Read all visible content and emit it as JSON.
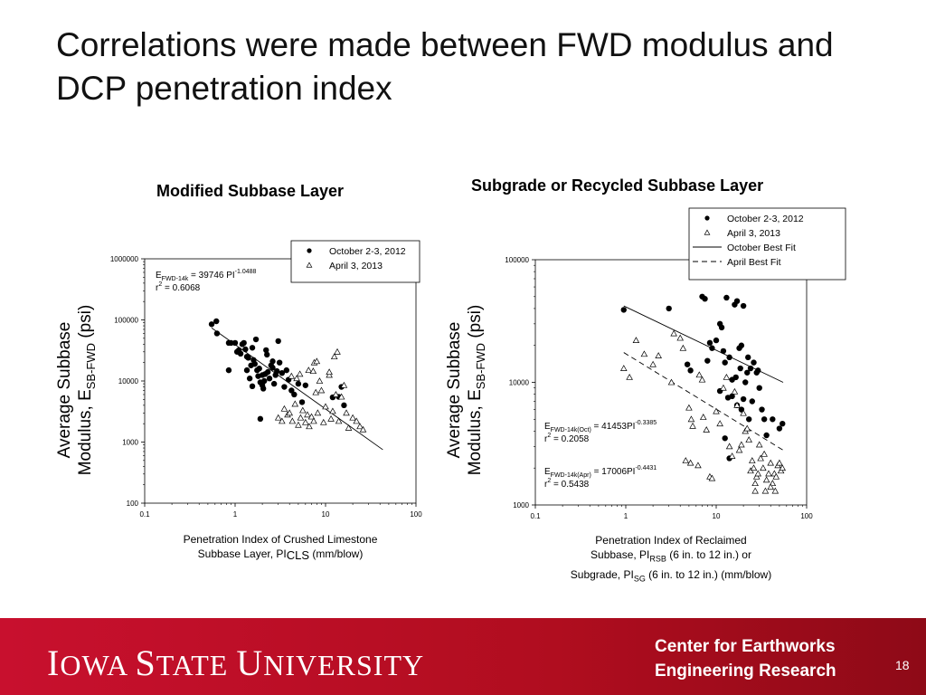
{
  "slide": {
    "title": "Correlations were made between FWD modulus and DCP penetration index",
    "page_number": "18",
    "footer": {
      "university_initial_1": "I",
      "university_rest_1": "OWA ",
      "university_initial_2": "S",
      "university_rest_2": "TATE ",
      "university_initial_3": "U",
      "university_rest_3": "NIVERSITY",
      "center_line1": "Center for Earthworks",
      "center_line2": "Engineering Research"
    }
  },
  "chart_data": [
    {
      "type": "scatter",
      "title": "Modified Subbase Layer",
      "y_scale": "log",
      "x_scale": "log",
      "xlim": [
        0.1,
        100
      ],
      "ylim": [
        100,
        1000000
      ],
      "x_ticks": [
        "0.1",
        "1",
        "10",
        "100"
      ],
      "y_ticks": [
        "100",
        "1000",
        "10000",
        "100000",
        "1000000"
      ],
      "ylabel_line1": "Average Subbase",
      "ylabel_line2_prefix": "Modulus, E",
      "ylabel_line2_sub": "SB-FWD",
      "ylabel_line2_suffix": " (psi)",
      "xlabel_line1": "Penetration Index of Crushed Limestone",
      "xlabel_line2_prefix": "Subbase Layer, PI",
      "xlabel_line2_sub": "CLS",
      "xlabel_line2_suffix": " (mm/blow)",
      "equation": {
        "E": "E",
        "sub": "FWD-14k",
        "body": " = 39746 PI",
        "sup": "-1.0488",
        "r": "r",
        "r_sup": "2",
        "r_val": " = 0.6068"
      },
      "legend": {
        "placement": "top-right",
        "entries": [
          "October 2-3, 2012",
          "April 3, 2013"
        ]
      },
      "fit_line": {
        "x": [
          0.55,
          43
        ],
        "y": [
          74000,
          750
        ]
      },
      "series": [
        {
          "name": "October 2-3, 2012",
          "marker": "filled-circle",
          "points": [
            [
              0.55,
              85000
            ],
            [
              0.62,
              95000
            ],
            [
              0.63,
              60000
            ],
            [
              0.85,
              42000
            ],
            [
              0.9,
              42000
            ],
            [
              1.0,
              42000
            ],
            [
              1.05,
              30000
            ],
            [
              1.1,
              32000
            ],
            [
              1.15,
              28000
            ],
            [
              1.2,
              40000
            ],
            [
              1.25,
              42000
            ],
            [
              1.3,
              33000
            ],
            [
              1.35,
              25000
            ],
            [
              1.4,
              24000
            ],
            [
              1.5,
              18000
            ],
            [
              1.55,
              35000
            ],
            [
              1.6,
              22000
            ],
            [
              1.7,
              48000
            ],
            [
              1.75,
              15000
            ],
            [
              1.8,
              12000
            ],
            [
              1.85,
              16000
            ],
            [
              1.9,
              9500
            ],
            [
              2.0,
              8500
            ],
            [
              2.05,
              7500
            ],
            [
              2.1,
              10000
            ],
            [
              2.15,
              13000
            ],
            [
              2.2,
              32000
            ],
            [
              2.3,
              14000
            ],
            [
              2.4,
              11000
            ],
            [
              2.5,
              18000
            ],
            [
              2.6,
              21000
            ],
            [
              2.7,
              9000
            ],
            [
              2.8,
              12500
            ],
            [
              2.9,
              14500
            ],
            [
              3.0,
              45000
            ],
            [
              3.1,
              20000
            ],
            [
              3.3,
              13500
            ],
            [
              3.5,
              8000
            ],
            [
              3.7,
              15000
            ],
            [
              3.9,
              10500
            ],
            [
              4.2,
              7000
            ],
            [
              4.5,
              6000
            ],
            [
              5.0,
              9000
            ],
            [
              5.5,
              4500
            ],
            [
              1.65,
              19000
            ],
            [
              1.35,
              15000
            ],
            [
              2.25,
              27000
            ],
            [
              1.55,
              8200
            ],
            [
              1.9,
              2400
            ],
            [
              14,
              5500
            ],
            [
              15,
              8000
            ],
            [
              16,
              4000
            ],
            [
              6,
              8500
            ],
            [
              0.85,
              15000
            ],
            [
              1.45,
              11000
            ],
            [
              2.0,
              12500
            ],
            [
              2.6,
              16500
            ],
            [
              12,
              5400
            ]
          ]
        },
        {
          "name": "April 3, 2013",
          "marker": "open-triangle",
          "points": [
            [
              3.0,
              2500
            ],
            [
              3.3,
              2200
            ],
            [
              3.5,
              3500
            ],
            [
              3.8,
              2800
            ],
            [
              4.0,
              3000
            ],
            [
              4.3,
              2200
            ],
            [
              4.6,
              4200
            ],
            [
              5.0,
              1900
            ],
            [
              5.3,
              2500
            ],
            [
              5.6,
              3300
            ],
            [
              6.0,
              2100
            ],
            [
              6.3,
              2800
            ],
            [
              6.6,
              1800
            ],
            [
              7.0,
              2600
            ],
            [
              7.4,
              2200
            ],
            [
              7.8,
              6500
            ],
            [
              8.2,
              3000
            ],
            [
              8.6,
              10000
            ],
            [
              9.0,
              7000
            ],
            [
              9.5,
              2100
            ],
            [
              10,
              3800
            ],
            [
              11,
              12500
            ],
            [
              11.5,
              2400
            ],
            [
              12,
              3200
            ],
            [
              13,
              6000
            ],
            [
              14,
              2200
            ],
            [
              15,
              5500
            ],
            [
              16,
              8500
            ],
            [
              17,
              3000
            ],
            [
              18,
              1700
            ],
            [
              20,
              2500
            ],
            [
              22,
              2200
            ],
            [
              24,
              1800
            ],
            [
              26,
              1600
            ],
            [
              7.5,
              20000
            ],
            [
              8.0,
              21000
            ],
            [
              11,
              14000
            ],
            [
              12.5,
              25000
            ],
            [
              13.5,
              30000
            ],
            [
              6.5,
              15000
            ],
            [
              5.2,
              13000
            ],
            [
              4.8,
              11000
            ],
            [
              7.3,
              14500
            ],
            [
              4.2,
              12000
            ]
          ]
        }
      ]
    },
    {
      "type": "scatter",
      "title": "Subgrade or Recycled Subbase Layer",
      "y_scale": "log",
      "x_scale": "log",
      "xlim": [
        0.1,
        100
      ],
      "ylim": [
        1000,
        100000
      ],
      "x_ticks": [
        "0.1",
        "1",
        "10",
        "100"
      ],
      "y_ticks": [
        "1000",
        "10000",
        "100000"
      ],
      "ylabel_line1": "Average Subbase",
      "ylabel_line2_prefix": "Modulus, E",
      "ylabel_line2_sub": "SB-FWD",
      "ylabel_line2_suffix": " (psi)",
      "xlabel_line1": "Penetration Index of Reclaimed",
      "xlabel_line2_prefix": "Subbase, PI",
      "xlabel_line2_sub": "RSB",
      "xlabel_line2_suffix": " (6 in. to 12 in.) or",
      "xlabel_line3_prefix": "Subgrade, PI",
      "xlabel_line3_sub": "SG",
      "xlabel_line3_suffix": " (6 in. to 12 in.) (mm/blow)",
      "equation_oct": {
        "E": "E",
        "sub": "FWD-14k(Oct)",
        "body": " = 41453PI",
        "sup": "-0.3385",
        "r": "r",
        "r_sup": "2",
        "r_val": " = 0.2058"
      },
      "equation_apr": {
        "E": "E",
        "sub": "FWD-14k(Apr)",
        "body": " = 17006PI",
        "sup": "-0.4431",
        "r": "r",
        "r_sup": "2",
        "r_val": " = 0.5438"
      },
      "legend": {
        "placement": "top-right",
        "entries": [
          "October 2-3, 2012",
          "April 3, 2013",
          "October Best Fit",
          "April Best Fit"
        ]
      },
      "october_fit": {
        "x": [
          0.95,
          55
        ],
        "y": [
          42000,
          10000
        ]
      },
      "april_fit": {
        "x": [
          0.95,
          55
        ],
        "y": [
          17500,
          2800
        ]
      },
      "series": [
        {
          "name": "October 2-3, 2012",
          "marker": "filled-circle",
          "points": [
            [
              0.95,
              39000
            ],
            [
              3.0,
              40000
            ],
            [
              4.8,
              14000
            ],
            [
              5.2,
              12500
            ],
            [
              7.0,
              50000
            ],
            [
              7.5,
              48000
            ],
            [
              8.0,
              15000
            ],
            [
              8.5,
              21000
            ],
            [
              9.0,
              19000
            ],
            [
              10,
              22000
            ],
            [
              11,
              30000
            ],
            [
              11.5,
              28000
            ],
            [
              12,
              18000
            ],
            [
              13,
              49000
            ],
            [
              12.5,
              14500
            ],
            [
              14,
              16000
            ],
            [
              15,
              10500
            ],
            [
              16,
              43000
            ],
            [
              17,
              46000
            ],
            [
              18,
              19000
            ],
            [
              18.5,
              13000
            ],
            [
              19,
              20000
            ],
            [
              20,
              42000
            ],
            [
              21,
              10000
            ],
            [
              22,
              12000
            ],
            [
              22.5,
              16000
            ],
            [
              24,
              13000
            ],
            [
              26,
              14500
            ],
            [
              28,
              12000
            ],
            [
              30,
              9000
            ],
            [
              32,
              6000
            ],
            [
              34,
              5000
            ],
            [
              36,
              3700
            ],
            [
              42,
              5000
            ],
            [
              50,
              4200
            ],
            [
              54,
              4600
            ],
            [
              13.5,
              7500
            ],
            [
              15,
              7700
            ],
            [
              17,
              6500
            ],
            [
              25,
              7000
            ],
            [
              12.5,
              3500
            ],
            [
              14,
              2400
            ],
            [
              29,
              12500
            ],
            [
              11,
              8500
            ],
            [
              16.5,
              11000
            ],
            [
              19,
              6000
            ],
            [
              20,
              7300
            ],
            [
              23,
              5000
            ]
          ]
        },
        {
          "name": "April 3, 2013",
          "marker": "open-triangle",
          "points": [
            [
              0.95,
              13000
            ],
            [
              1.1,
              11000
            ],
            [
              1.3,
              22000
            ],
            [
              1.6,
              17000
            ],
            [
              2.0,
              14000
            ],
            [
              2.3,
              16500
            ],
            [
              3.4,
              25000
            ],
            [
              4.0,
              23000
            ],
            [
              4.3,
              19000
            ],
            [
              5.0,
              6200
            ],
            [
              5.3,
              5000
            ],
            [
              5.5,
              4400
            ],
            [
              6.5,
              11500
            ],
            [
              7.0,
              10500
            ],
            [
              7.8,
              4100
            ],
            [
              8.5,
              1700
            ],
            [
              9.0,
              1650
            ],
            [
              10,
              5800
            ],
            [
              11,
              4600
            ],
            [
              12,
              9000
            ],
            [
              13,
              11000
            ],
            [
              14,
              3000
            ],
            [
              15,
              2500
            ],
            [
              16,
              8400
            ],
            [
              17,
              6500
            ],
            [
              18,
              2800
            ],
            [
              19,
              3100
            ],
            [
              20,
              5600
            ],
            [
              21,
              4000
            ],
            [
              22,
              4200
            ],
            [
              23,
              3400
            ],
            [
              24,
              1900
            ],
            [
              25,
              2300
            ],
            [
              26,
              2000
            ],
            [
              27,
              1500
            ],
            [
              28,
              1700
            ],
            [
              29,
              1800
            ],
            [
              30,
              3100
            ],
            [
              31,
              2400
            ],
            [
              33,
              2000
            ],
            [
              34,
              2600
            ],
            [
              36,
              1600
            ],
            [
              38,
              1800
            ],
            [
              40,
              2200
            ],
            [
              42,
              1500
            ],
            [
              44,
              1800
            ],
            [
              46,
              1700
            ],
            [
              48,
              2100
            ],
            [
              50,
              2200
            ],
            [
              52,
              1900
            ],
            [
              54,
              2000
            ],
            [
              27,
              1300
            ],
            [
              35,
              1300
            ],
            [
              40,
              1400
            ],
            [
              45,
              1300
            ],
            [
              4.6,
              2300
            ],
            [
              5.2,
              2200
            ],
            [
              6.3,
              2100
            ],
            [
              7.2,
              5200
            ],
            [
              3.2,
              10000
            ]
          ]
        }
      ]
    }
  ]
}
